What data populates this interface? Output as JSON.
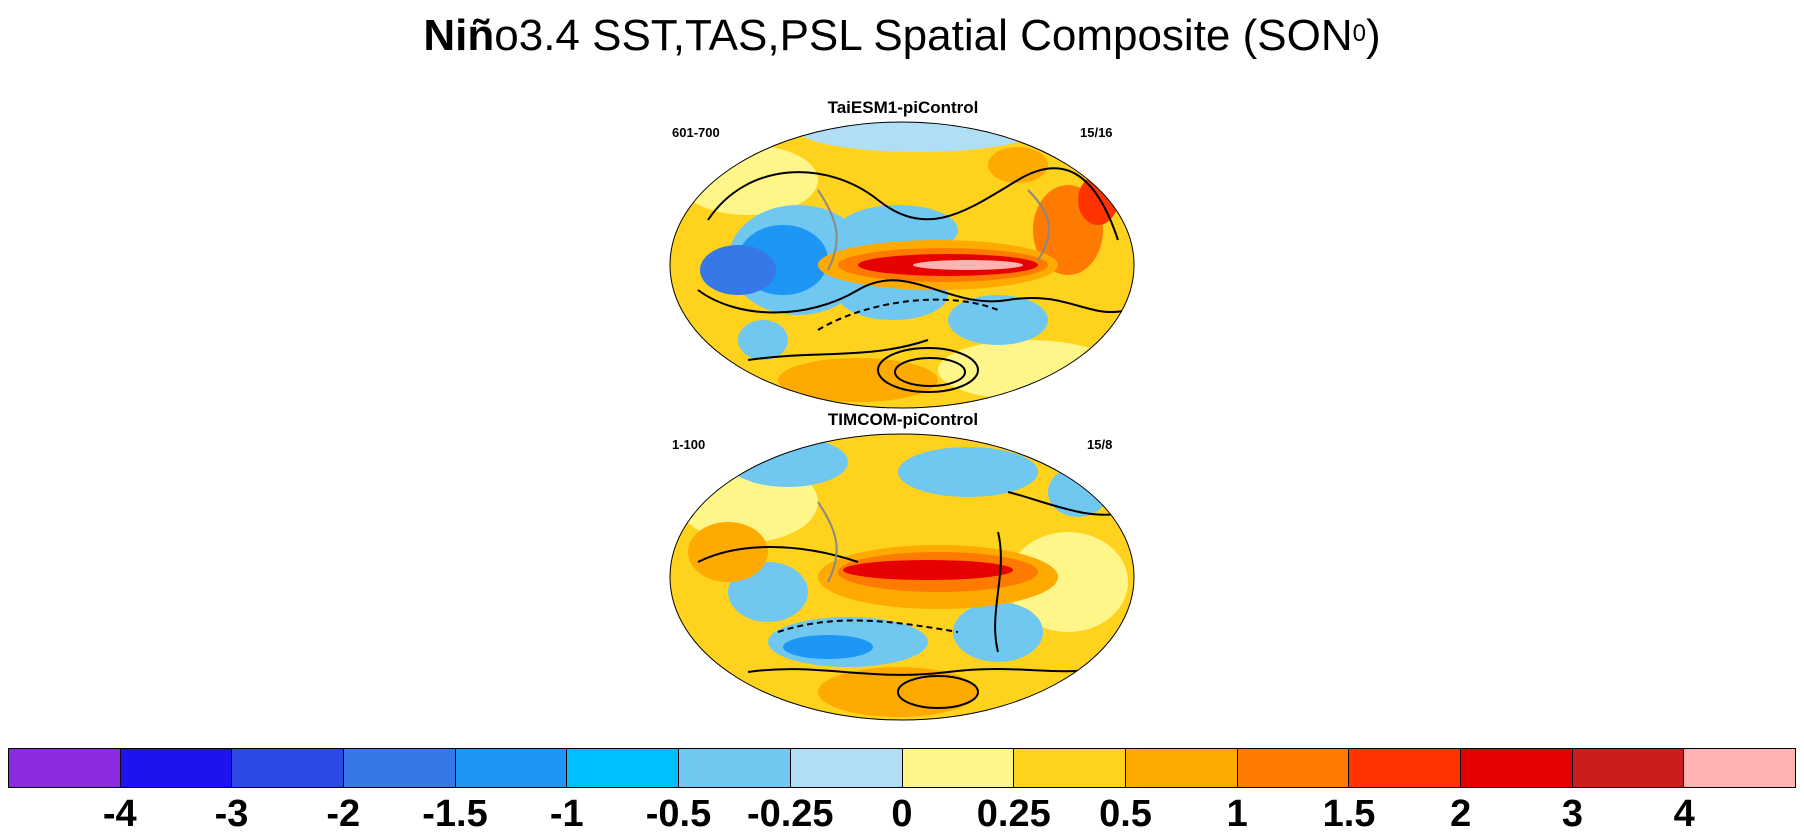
{
  "title": {
    "bold": "Niñ",
    "rest": "o3.4 SST,TAS,PSL Spatial Composite (SON",
    "sup": "0",
    "close": ")"
  },
  "panels": [
    {
      "name": "TaiESM1-piControl",
      "years": "601-700",
      "count": "15/16"
    },
    {
      "name": "TIMCOM-piControl",
      "years": "1-100",
      "count": "15/8"
    }
  ],
  "colorbar": {
    "colors": [
      "#8a2be2",
      "#1e12f0",
      "#2c4ae6",
      "#3578e6",
      "#1e96f6",
      "#00bfff",
      "#70c8f0",
      "#b0dff5",
      "#fff68a",
      "#ffd21e",
      "#ffaa00",
      "#ff7a00",
      "#ff3300",
      "#e60000",
      "#cc1c1c",
      "#ffb3b3"
    ],
    "labels": [
      "-4",
      "-3",
      "-2",
      "-1.5",
      "-1",
      "-0.5",
      "-0.25",
      "0",
      "0.25",
      "0.5",
      "1",
      "1.5",
      "2",
      "3",
      "4"
    ]
  }
}
